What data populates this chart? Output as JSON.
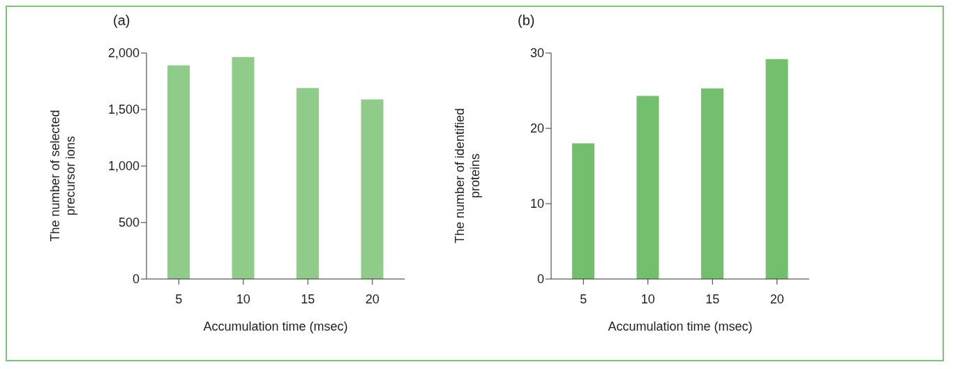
{
  "chart_data": [
    {
      "type": "bar",
      "title": "(a)",
      "categories": [
        "5",
        "10",
        "15",
        "20"
      ],
      "values": [
        1890,
        1965,
        1690,
        1590
      ],
      "color": "#8fcc8a",
      "xlabel": "Accumulation time (msec)",
      "ylabel": "The number of selected precursor ions",
      "ylim": [
        0,
        2000
      ],
      "yticks": [
        0,
        {
          "value": 500,
          "label": "500"
        },
        {
          "value": 1000,
          "label": "1,000"
        },
        {
          "value": 1500,
          "label": "1,500"
        },
        {
          "value": 2000,
          "label": "2,000"
        }
      ],
      "grid": false,
      "legend": false
    },
    {
      "type": "bar",
      "title": "(b)",
      "categories": [
        "5",
        "10",
        "15",
        "20"
      ],
      "values": [
        18,
        24.3,
        25.3,
        29.2
      ],
      "color": "#72c06e",
      "xlabel": "Accumulation time (msec)",
      "ylabel": "The number of identified proteins",
      "ylim": [
        0,
        30
      ],
      "yticks": [
        0,
        10,
        20,
        30
      ],
      "grid": false,
      "legend": false
    }
  ]
}
